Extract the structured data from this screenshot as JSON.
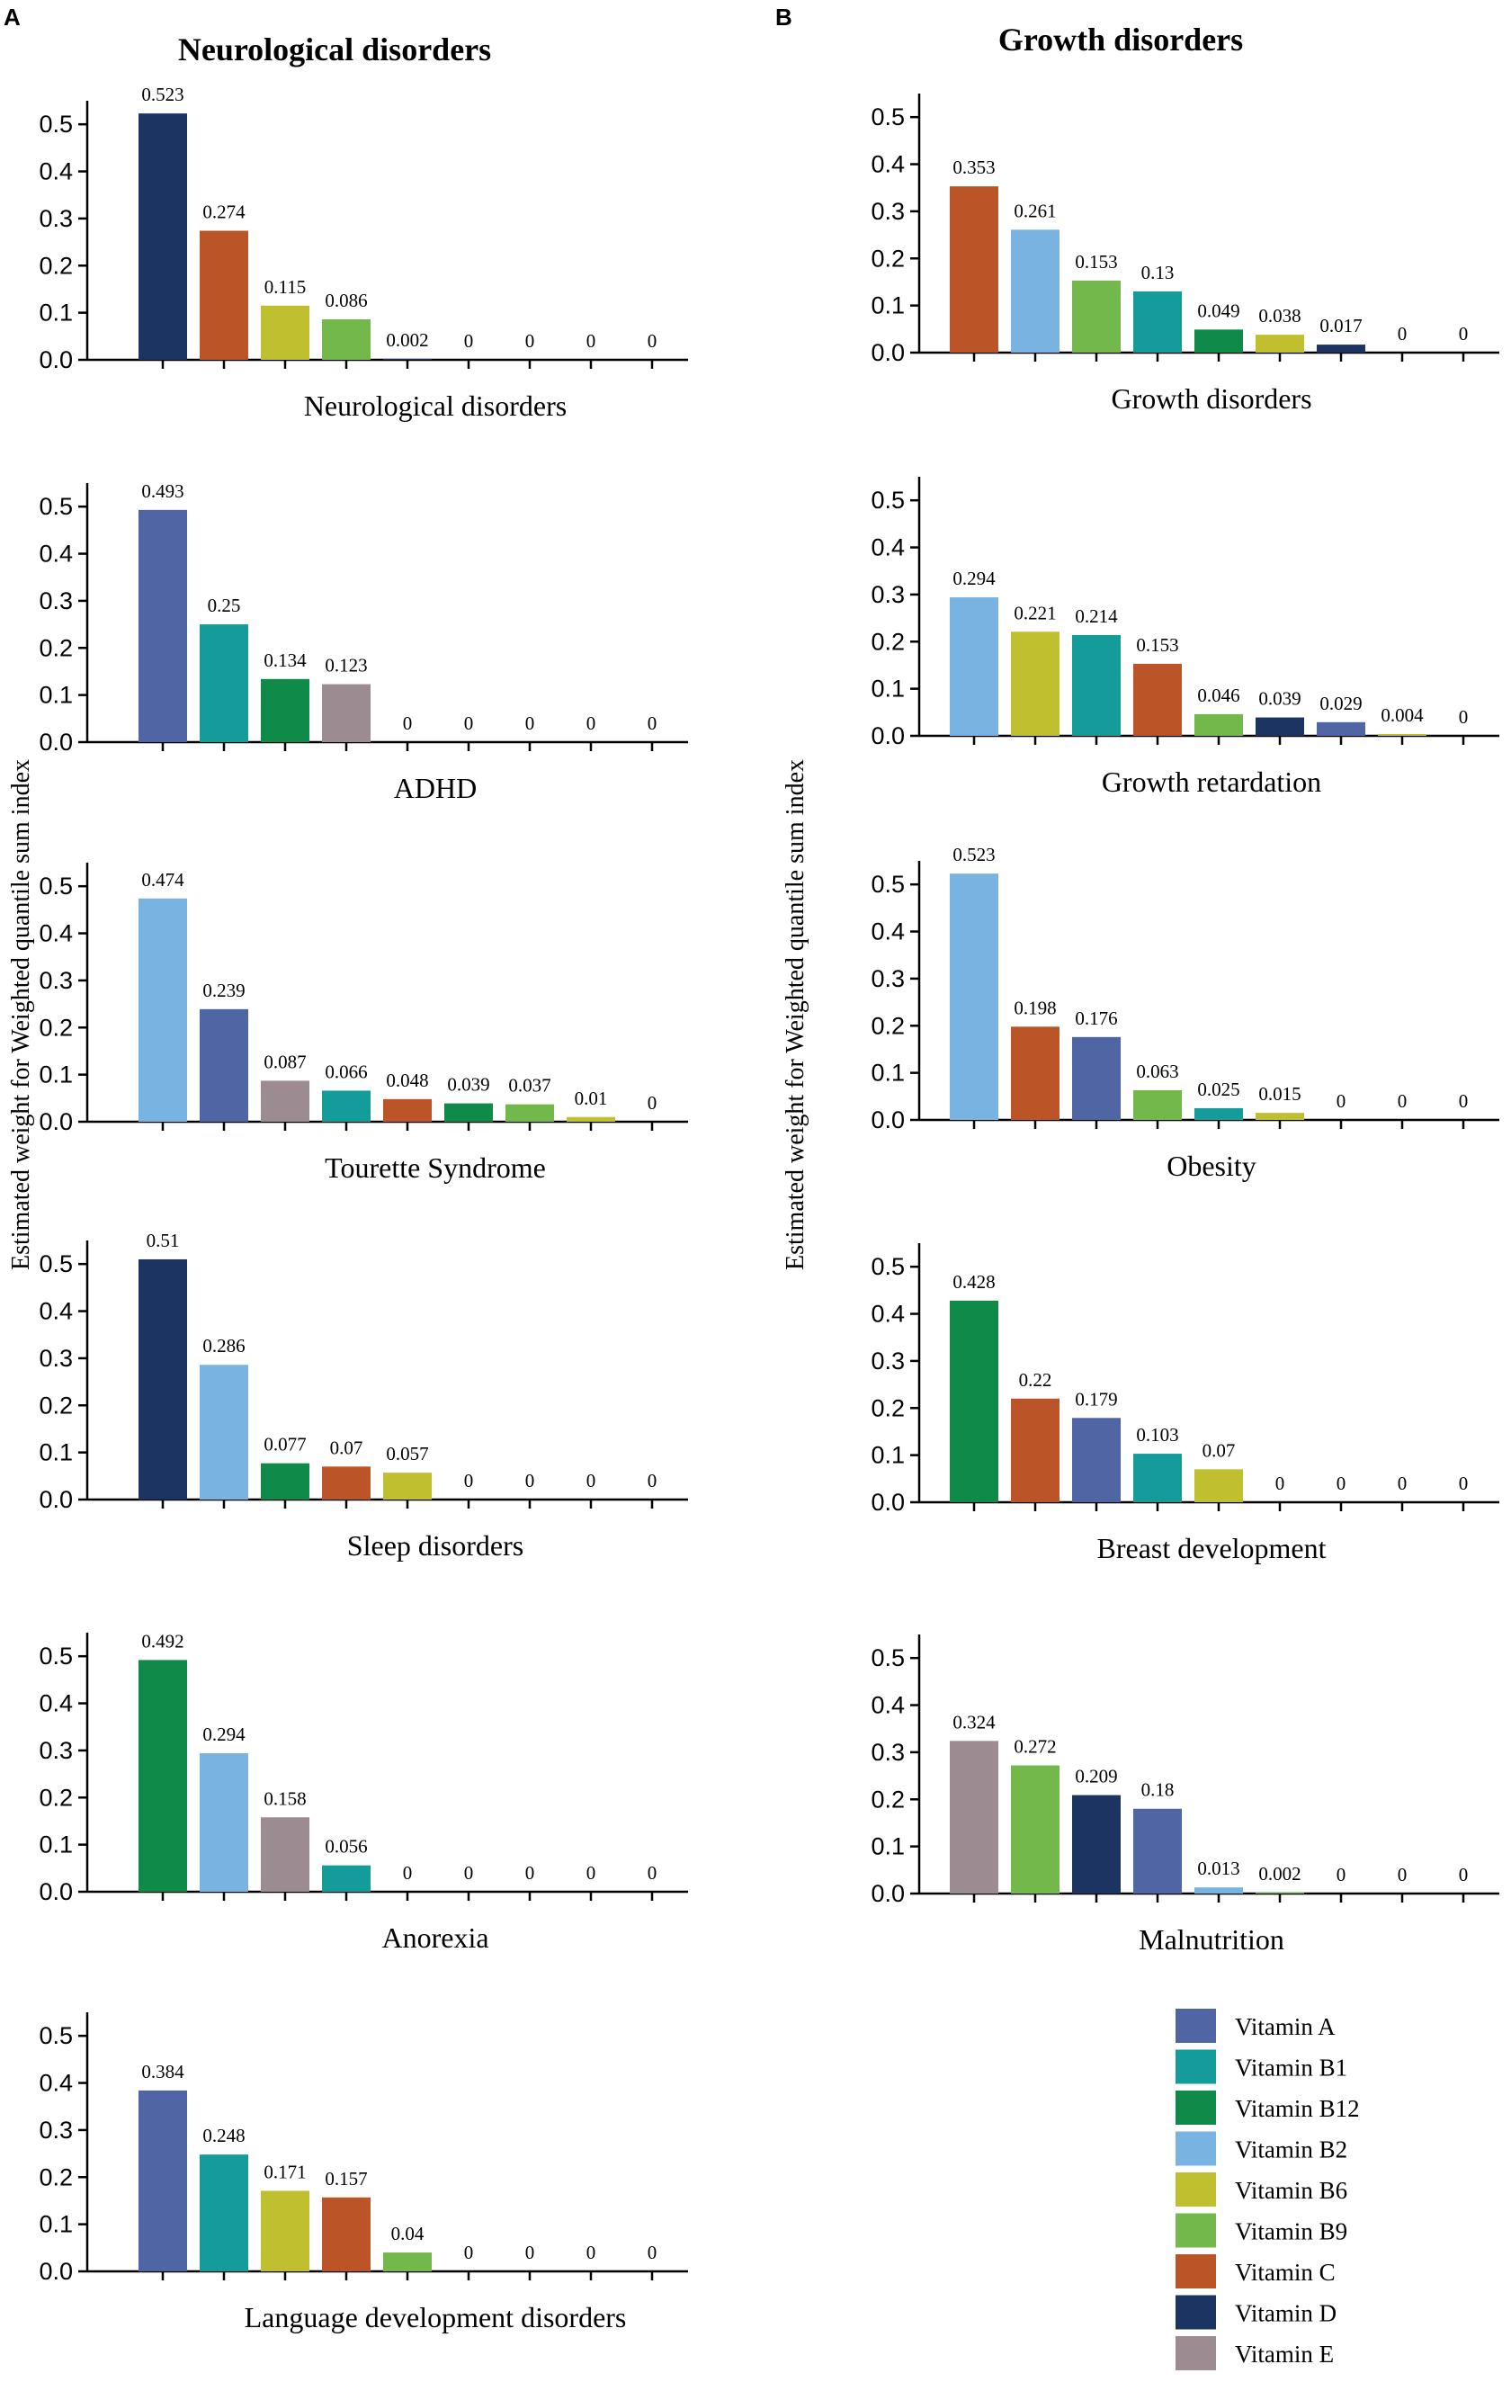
{
  "panels": {
    "A": {
      "label": "A",
      "title": "Neurological disorders"
    },
    "B": {
      "label": "B",
      "title": "Growth disorders"
    }
  },
  "y_axis_label": "Estimated weight for Weighted quantile sum  index",
  "legend": [
    {
      "name": "Vitamin A",
      "color": "#5065a3"
    },
    {
      "name": "Vitamin B1",
      "color": "#139c9a"
    },
    {
      "name": "Vitamin B12",
      "color": "#108a49"
    },
    {
      "name": "Vitamin B2",
      "color": "#78b3e1"
    },
    {
      "name": "Vitamin B6",
      "color": "#bfbf30"
    },
    {
      "name": "Vitamin B9",
      "color": "#72b84a"
    },
    {
      "name": "Vitamin C",
      "color": "#bb5426"
    },
    {
      "name": "Vitamin D",
      "color": "#1b3461"
    },
    {
      "name": "Vitamin E",
      "color": "#9d8b92"
    }
  ],
  "chart_data": [
    {
      "type": "bar",
      "panel": "A",
      "title": "Neurological disorders",
      "xlabel": "Neurological disorders",
      "ylim": [
        0,
        0.55
      ],
      "yticks": [
        "0.0",
        "0.1",
        "0.2",
        "0.3",
        "0.4",
        "0.5"
      ],
      "bars": [
        {
          "label": "0.523",
          "value": 0.523,
          "vitamin": "Vitamin D"
        },
        {
          "label": "0.274",
          "value": 0.274,
          "vitamin": "Vitamin C"
        },
        {
          "label": "0.115",
          "value": 0.115,
          "vitamin": "Vitamin B6"
        },
        {
          "label": "0.086",
          "value": 0.086,
          "vitamin": "Vitamin B9"
        },
        {
          "label": "0.002",
          "value": 0.002,
          "vitamin": "Vitamin D"
        },
        {
          "label": "0",
          "value": 0,
          "vitamin": null
        },
        {
          "label": "0",
          "value": 0,
          "vitamin": null
        },
        {
          "label": "0",
          "value": 0,
          "vitamin": null
        },
        {
          "label": "0",
          "value": 0,
          "vitamin": null
        }
      ]
    },
    {
      "type": "bar",
      "panel": "A",
      "xlabel": "ADHD",
      "ylim": [
        0,
        0.55
      ],
      "yticks": [
        "0.0",
        "0.1",
        "0.2",
        "0.3",
        "0.4",
        "0.5"
      ],
      "bars": [
        {
          "label": "0.493",
          "value": 0.493,
          "vitamin": "Vitamin A"
        },
        {
          "label": "0.25",
          "value": 0.25,
          "vitamin": "Vitamin B1"
        },
        {
          "label": "0.134",
          "value": 0.134,
          "vitamin": "Vitamin B12"
        },
        {
          "label": "0.123",
          "value": 0.123,
          "vitamin": "Vitamin E"
        },
        {
          "label": "0",
          "value": 0,
          "vitamin": null
        },
        {
          "label": "0",
          "value": 0,
          "vitamin": null
        },
        {
          "label": "0",
          "value": 0,
          "vitamin": null
        },
        {
          "label": "0",
          "value": 0,
          "vitamin": null
        },
        {
          "label": "0",
          "value": 0,
          "vitamin": null
        }
      ]
    },
    {
      "type": "bar",
      "panel": "A",
      "xlabel": "Tourette Syndrome",
      "ylim": [
        0,
        0.55
      ],
      "yticks": [
        "0.0",
        "0.1",
        "0.2",
        "0.3",
        "0.4",
        "0.5"
      ],
      "bars": [
        {
          "label": "0.474",
          "value": 0.474,
          "vitamin": "Vitamin B2"
        },
        {
          "label": "0.239",
          "value": 0.239,
          "vitamin": "Vitamin A"
        },
        {
          "label": "0.087",
          "value": 0.087,
          "vitamin": "Vitamin E"
        },
        {
          "label": "0.066",
          "value": 0.066,
          "vitamin": "Vitamin B1"
        },
        {
          "label": "0.048",
          "value": 0.048,
          "vitamin": "Vitamin C"
        },
        {
          "label": "0.039",
          "value": 0.039,
          "vitamin": "Vitamin B12"
        },
        {
          "label": "0.037",
          "value": 0.037,
          "vitamin": "Vitamin B9"
        },
        {
          "label": "0.01",
          "value": 0.01,
          "vitamin": "Vitamin B6"
        },
        {
          "label": "0",
          "value": 0,
          "vitamin": null
        }
      ]
    },
    {
      "type": "bar",
      "panel": "A",
      "xlabel": "Sleep disorders",
      "ylim": [
        0,
        0.55
      ],
      "yticks": [
        "0.0",
        "0.1",
        "0.2",
        "0.3",
        "0.4",
        "0.5"
      ],
      "bars": [
        {
          "label": "0.51",
          "value": 0.51,
          "vitamin": "Vitamin D"
        },
        {
          "label": "0.286",
          "value": 0.286,
          "vitamin": "Vitamin B2"
        },
        {
          "label": "0.077",
          "value": 0.077,
          "vitamin": "Vitamin B12"
        },
        {
          "label": "0.07",
          "value": 0.07,
          "vitamin": "Vitamin C"
        },
        {
          "label": "0.057",
          "value": 0.057,
          "vitamin": "Vitamin B6"
        },
        {
          "label": "0",
          "value": 0,
          "vitamin": null
        },
        {
          "label": "0",
          "value": 0,
          "vitamin": null
        },
        {
          "label": "0",
          "value": 0,
          "vitamin": null
        },
        {
          "label": "0",
          "value": 0,
          "vitamin": null
        }
      ]
    },
    {
      "type": "bar",
      "panel": "A",
      "xlabel": "Anorexia",
      "ylim": [
        0,
        0.55
      ],
      "yticks": [
        "0.0",
        "0.1",
        "0.2",
        "0.3",
        "0.4",
        "0.5"
      ],
      "bars": [
        {
          "label": "0.492",
          "value": 0.492,
          "vitamin": "Vitamin B12"
        },
        {
          "label": "0.294",
          "value": 0.294,
          "vitamin": "Vitamin B2"
        },
        {
          "label": "0.158",
          "value": 0.158,
          "vitamin": "Vitamin E"
        },
        {
          "label": "0.056",
          "value": 0.056,
          "vitamin": "Vitamin B1"
        },
        {
          "label": "0",
          "value": 0,
          "vitamin": null
        },
        {
          "label": "0",
          "value": 0,
          "vitamin": null
        },
        {
          "label": "0",
          "value": 0,
          "vitamin": null
        },
        {
          "label": "0",
          "value": 0,
          "vitamin": null
        },
        {
          "label": "0",
          "value": 0,
          "vitamin": null
        }
      ]
    },
    {
      "type": "bar",
      "panel": "A",
      "xlabel": "Language development disorders",
      "ylim": [
        0,
        0.55
      ],
      "yticks": [
        "0.0",
        "0.1",
        "0.2",
        "0.3",
        "0.4",
        "0.5"
      ],
      "bars": [
        {
          "label": "0.384",
          "value": 0.384,
          "vitamin": "Vitamin A"
        },
        {
          "label": "0.248",
          "value": 0.248,
          "vitamin": "Vitamin B1"
        },
        {
          "label": "0.171",
          "value": 0.171,
          "vitamin": "Vitamin B6"
        },
        {
          "label": "0.157",
          "value": 0.157,
          "vitamin": "Vitamin C"
        },
        {
          "label": "0.04",
          "value": 0.04,
          "vitamin": "Vitamin B9"
        },
        {
          "label": "0",
          "value": 0,
          "vitamin": null
        },
        {
          "label": "0",
          "value": 0,
          "vitamin": null
        },
        {
          "label": "0",
          "value": 0,
          "vitamin": null
        },
        {
          "label": "0",
          "value": 0,
          "vitamin": null
        }
      ]
    },
    {
      "type": "bar",
      "panel": "B",
      "title": "Growth disorders",
      "xlabel": "Growth disorders",
      "ylim": [
        0,
        0.55
      ],
      "yticks": [
        "0.0",
        "0.1",
        "0.2",
        "0.3",
        "0.4",
        "0.5"
      ],
      "bars": [
        {
          "label": "0.353",
          "value": 0.353,
          "vitamin": "Vitamin C"
        },
        {
          "label": "0.261",
          "value": 0.261,
          "vitamin": "Vitamin B2"
        },
        {
          "label": "0.153",
          "value": 0.153,
          "vitamin": "Vitamin B9"
        },
        {
          "label": "0.13",
          "value": 0.13,
          "vitamin": "Vitamin B1"
        },
        {
          "label": "0.049",
          "value": 0.049,
          "vitamin": "Vitamin B12"
        },
        {
          "label": "0.038",
          "value": 0.038,
          "vitamin": "Vitamin B6"
        },
        {
          "label": "0.017",
          "value": 0.017,
          "vitamin": "Vitamin D"
        },
        {
          "label": "0",
          "value": 0,
          "vitamin": null
        },
        {
          "label": "0",
          "value": 0,
          "vitamin": null
        }
      ]
    },
    {
      "type": "bar",
      "panel": "B",
      "xlabel": "Growth retardation",
      "ylim": [
        0,
        0.55
      ],
      "yticks": [
        "0.0",
        "0.1",
        "0.2",
        "0.3",
        "0.4",
        "0.5"
      ],
      "bars": [
        {
          "label": "0.294",
          "value": 0.294,
          "vitamin": "Vitamin B2"
        },
        {
          "label": "0.221",
          "value": 0.221,
          "vitamin": "Vitamin B6"
        },
        {
          "label": "0.214",
          "value": 0.214,
          "vitamin": "Vitamin B1"
        },
        {
          "label": "0.153",
          "value": 0.153,
          "vitamin": "Vitamin C"
        },
        {
          "label": "0.046",
          "value": 0.046,
          "vitamin": "Vitamin B9"
        },
        {
          "label": "0.039",
          "value": 0.039,
          "vitamin": "Vitamin D"
        },
        {
          "label": "0.029",
          "value": 0.029,
          "vitamin": "Vitamin A"
        },
        {
          "label": "0.004",
          "value": 0.004,
          "vitamin": "Vitamin B6"
        },
        {
          "label": "0",
          "value": 0,
          "vitamin": null
        }
      ]
    },
    {
      "type": "bar",
      "panel": "B",
      "xlabel": "Obesity",
      "ylim": [
        0,
        0.55
      ],
      "yticks": [
        "0.0",
        "0.1",
        "0.2",
        "0.3",
        "0.4",
        "0.5"
      ],
      "bars": [
        {
          "label": "0.523",
          "value": 0.523,
          "vitamin": "Vitamin B2"
        },
        {
          "label": "0.198",
          "value": 0.198,
          "vitamin": "Vitamin C"
        },
        {
          "label": "0.176",
          "value": 0.176,
          "vitamin": "Vitamin A"
        },
        {
          "label": "0.063",
          "value": 0.063,
          "vitamin": "Vitamin B9"
        },
        {
          "label": "0.025",
          "value": 0.025,
          "vitamin": "Vitamin B1"
        },
        {
          "label": "0.015",
          "value": 0.015,
          "vitamin": "Vitamin B6"
        },
        {
          "label": "0",
          "value": 0,
          "vitamin": null
        },
        {
          "label": "0",
          "value": 0,
          "vitamin": null
        },
        {
          "label": "0",
          "value": 0,
          "vitamin": null
        }
      ]
    },
    {
      "type": "bar",
      "panel": "B",
      "xlabel": "Breast development",
      "ylim": [
        0,
        0.55
      ],
      "yticks": [
        "0.0",
        "0.1",
        "0.2",
        "0.3",
        "0.4",
        "0.5"
      ],
      "bars": [
        {
          "label": "0.428",
          "value": 0.428,
          "vitamin": "Vitamin B12"
        },
        {
          "label": "0.22",
          "value": 0.22,
          "vitamin": "Vitamin C"
        },
        {
          "label": "0.179",
          "value": 0.179,
          "vitamin": "Vitamin A"
        },
        {
          "label": "0.103",
          "value": 0.103,
          "vitamin": "Vitamin B1"
        },
        {
          "label": "0.07",
          "value": 0.07,
          "vitamin": "Vitamin B6"
        },
        {
          "label": "0",
          "value": 0,
          "vitamin": null
        },
        {
          "label": "0",
          "value": 0,
          "vitamin": null
        },
        {
          "label": "0",
          "value": 0,
          "vitamin": null
        },
        {
          "label": "0",
          "value": 0,
          "vitamin": null
        }
      ]
    },
    {
      "type": "bar",
      "panel": "B",
      "xlabel": "Malnutrition",
      "ylim": [
        0,
        0.55
      ],
      "yticks": [
        "0.0",
        "0.1",
        "0.2",
        "0.3",
        "0.4",
        "0.5"
      ],
      "bars": [
        {
          "label": "0.324",
          "value": 0.324,
          "vitamin": "Vitamin E"
        },
        {
          "label": "0.272",
          "value": 0.272,
          "vitamin": "Vitamin B9"
        },
        {
          "label": "0.209",
          "value": 0.209,
          "vitamin": "Vitamin D"
        },
        {
          "label": "0.18",
          "value": 0.18,
          "vitamin": "Vitamin A"
        },
        {
          "label": "0.013",
          "value": 0.013,
          "vitamin": "Vitamin B2"
        },
        {
          "label": "0.002",
          "value": 0.002,
          "vitamin": "Vitamin B9"
        },
        {
          "label": "0",
          "value": 0,
          "vitamin": null
        },
        {
          "label": "0",
          "value": 0,
          "vitamin": null
        },
        {
          "label": "0",
          "value": 0,
          "vitamin": null
        }
      ]
    }
  ]
}
